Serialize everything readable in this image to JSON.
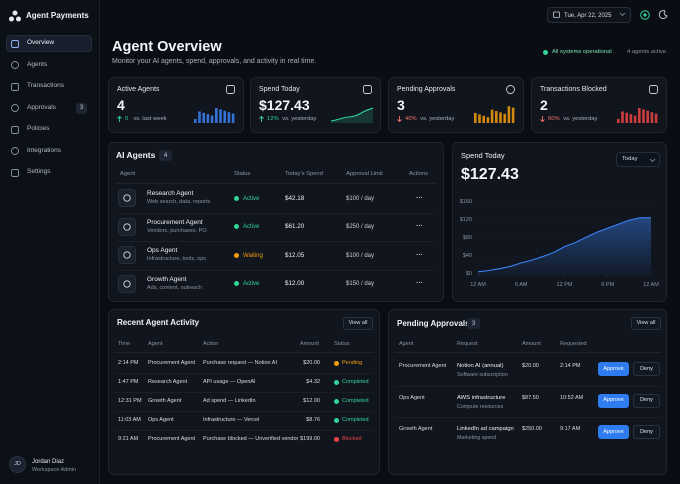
{
  "brand": "Agent Payments",
  "nav": {
    "items": [
      "Overview",
      "Agents",
      "Transactions",
      "Approvals",
      "Policies",
      "Integrations",
      "Settings"
    ],
    "active": 0,
    "badge_item": 3,
    "badge": "3"
  },
  "user": {
    "initials": "JD",
    "name": "Jordan Diaz",
    "role": "Workspace Admin"
  },
  "topbar": {
    "date": "Tue, Apr 22, 2025"
  },
  "header": {
    "title": "Agent Overview",
    "subtitle": "Monitor your AI agents, spend, approvals, and activity in real time.",
    "status": "All systems operational",
    "agents_active": "4 agents active"
  },
  "kpis": [
    {
      "label": "Active Agents",
      "value": "4",
      "delta": "0",
      "suffix": "vs. last week",
      "trend": "up",
      "delta_color": "#34d399",
      "spark_color": "#3b82f6"
    },
    {
      "label": "Spend Today",
      "value": "$127.43",
      "delta": "12%",
      "suffix": "vs. yesterday",
      "trend": "up",
      "delta_color": "#34d399",
      "spark_color": "#34d399"
    },
    {
      "label": "Pending Approvals",
      "value": "3",
      "delta": "40%",
      "suffix": "vs. yesterday",
      "trend": "down",
      "delta_color": "#f87171",
      "spark_color": "#f59e0b"
    },
    {
      "label": "Transactions Blocked",
      "value": "2",
      "delta": "60%",
      "suffix": "vs. yesterday",
      "trend": "down",
      "delta_color": "#f87171",
      "spark_color": "#ef4444"
    }
  ],
  "agents": {
    "title": "AI Agents",
    "count": "4",
    "columns": [
      "Agent",
      "Status",
      "Today's Spend",
      "Approval Limit",
      "Actions"
    ],
    "actions": "···",
    "rows": [
      {
        "name": "Research Agent",
        "desc": "Web search, data, reports",
        "status": "Active",
        "status_color": "#34d399",
        "spend": "$42.18",
        "limit": "$100 / day"
      },
      {
        "name": "Procurement Agent",
        "desc": "Vendors, purchases, PO",
        "status": "Active",
        "status_color": "#34d399",
        "spend": "$61.20",
        "limit": "$250 / day"
      },
      {
        "name": "Ops Agent",
        "desc": "Infrastructure, tools, ops",
        "status": "Waiting",
        "status_color": "#f59e0b",
        "spend": "$12.05",
        "limit": "$100 / day"
      },
      {
        "name": "Growth Agent",
        "desc": "Ads, content, outreach",
        "status": "Active",
        "status_color": "#34d399",
        "spend": "$12.00",
        "limit": "$150 / day"
      }
    ]
  },
  "spend_chart": {
    "type": "line",
    "title": "Spend Today",
    "value": "$127.43",
    "period": "Today",
    "color": "#3b82f6",
    "x": [
      0,
      1.5,
      3,
      4.5,
      6,
      7.5,
      9,
      10.5,
      12,
      13.5,
      15,
      16.5,
      18,
      19.5,
      21,
      22.5,
      24
    ],
    "values": [
      7,
      10,
      14,
      19,
      27,
      33,
      41,
      50,
      63,
      72,
      84,
      95,
      104,
      113,
      122,
      127,
      127.43
    ],
    "xlim": [
      0,
      24
    ],
    "ylim": [
      0,
      160
    ],
    "xticks": [
      {
        "value": 0,
        "label": "12 AM"
      },
      {
        "value": 6,
        "label": "6 AM"
      },
      {
        "value": 12,
        "label": "12 PM"
      },
      {
        "value": 18,
        "label": "6 PM"
      },
      {
        "value": 24,
        "label": "12 AM"
      }
    ],
    "yticks": [
      {
        "value": 0,
        "label": "$0"
      },
      {
        "value": 40,
        "label": "$40"
      },
      {
        "value": 80,
        "label": "$80"
      },
      {
        "value": 120,
        "label": "$120"
      },
      {
        "value": 160,
        "label": "$160"
      }
    ],
    "grid": true
  },
  "activity": {
    "title": "Recent Agent Activity",
    "button": "View all",
    "columns": [
      "Time",
      "Agent",
      "Action",
      "Amount",
      "Status"
    ],
    "rows": [
      {
        "time": "2:14 PM",
        "agent": "Procurement Agent",
        "action": "Purchase request — Notion AI",
        "amount": "$20.00",
        "status": "Pending",
        "status_color": "#f59e0b"
      },
      {
        "time": "1:47 PM",
        "agent": "Research Agent",
        "action": "API usage — OpenAI",
        "amount": "$4.32",
        "status": "Completed",
        "status_color": "#34d399"
      },
      {
        "time": "12:31 PM",
        "agent": "Growth Agent",
        "action": "Ad spend — LinkedIn",
        "amount": "$12.00",
        "status": "Completed",
        "status_color": "#34d399"
      },
      {
        "time": "11:03 AM",
        "agent": "Ops Agent",
        "action": "Infrastructure — Vercel",
        "amount": "$8.76",
        "status": "Completed",
        "status_color": "#34d399"
      },
      {
        "time": "9:21 AM",
        "agent": "Procurement Agent",
        "action": "Purchase blocked — Unverified vendor",
        "amount": "$199.00",
        "status": "Blocked",
        "status_color": "#ef4444"
      }
    ]
  },
  "approvals": {
    "title": "Pending Approvals",
    "count": "3",
    "button": "View all",
    "columns": [
      "Agent",
      "Request",
      "Amount",
      "Requested"
    ],
    "actions": [
      "Approve",
      "Deny"
    ],
    "rows": [
      {
        "agent": "Procurement Agent",
        "request": "Notion AI (annual)",
        "detail": "Software subscription",
        "amount": "$20.00",
        "time": "2:14 PM"
      },
      {
        "agent": "Ops Agent",
        "request": "AWS infrastructure",
        "detail": "Compute resources",
        "amount": "$87.50",
        "time": "10:52 AM"
      },
      {
        "agent": "Growth Agent",
        "request": "LinkedIn ad campaign",
        "detail": "Marketing spend",
        "amount": "$250.00",
        "time": "9:17 AM"
      }
    ]
  }
}
